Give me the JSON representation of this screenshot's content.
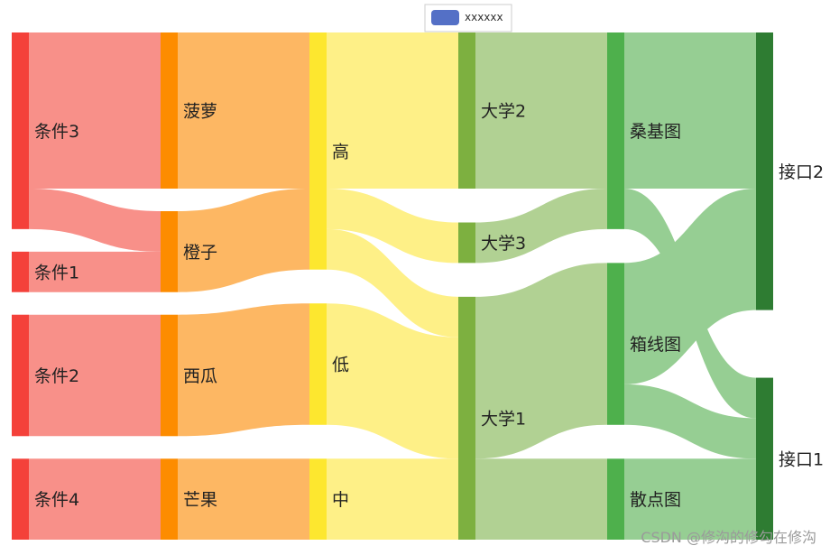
{
  "chart_data": {
    "type": "sankey",
    "legend": {
      "items": [
        "xxxxxx"
      ],
      "color": "#5470c6",
      "placement": "top-center"
    },
    "columns": [
      {
        "color": "#f4413a",
        "nodes": [
          "条件3",
          "条件1",
          "条件2",
          "条件4"
        ]
      },
      {
        "color": "#fd8c00",
        "nodes": [
          "菠萝",
          "橙子",
          "西瓜",
          "芒果"
        ]
      },
      {
        "color": "#fde72f",
        "nodes": [
          "高",
          "低",
          "中"
        ]
      },
      {
        "color": "#7db040",
        "nodes": [
          "大学2",
          "大学3",
          "大学1"
        ]
      },
      {
        "color": "#4eb04c",
        "nodes": [
          "桑基图",
          "箱线图",
          "散点图"
        ]
      },
      {
        "color": "#2e7c32",
        "nodes": [
          "接口2",
          "接口1"
        ]
      }
    ],
    "links": [
      {
        "source": "条件3",
        "target": "菠萝",
        "value": 13.5
      },
      {
        "source": "条件3",
        "target": "橙子",
        "value": 3.5
      },
      {
        "source": "条件1",
        "target": "橙子",
        "value": 3.5
      },
      {
        "source": "条件2",
        "target": "西瓜",
        "value": 10.5
      },
      {
        "source": "条件4",
        "target": "芒果",
        "value": 7
      },
      {
        "source": "菠萝",
        "target": "高",
        "value": 13.5
      },
      {
        "source": "橙子",
        "target": "高",
        "value": 7
      },
      {
        "source": "西瓜",
        "target": "低",
        "value": 10.5
      },
      {
        "source": "芒果",
        "target": "中",
        "value": 7
      },
      {
        "source": "高",
        "target": "大学2",
        "value": 13.5
      },
      {
        "source": "高",
        "target": "大学3",
        "value": 3.5
      },
      {
        "source": "高",
        "target": "大学1",
        "value": 3.5
      },
      {
        "source": "低",
        "target": "大学1",
        "value": 10.5
      },
      {
        "source": "中",
        "target": "大学1",
        "value": 7
      },
      {
        "source": "大学2",
        "target": "桑基图",
        "value": 13.5
      },
      {
        "source": "大学3",
        "target": "桑基图",
        "value": 3.5
      },
      {
        "source": "大学1",
        "target": "箱线图",
        "value": 14
      },
      {
        "source": "大学1",
        "target": "散点图",
        "value": 7
      },
      {
        "source": "桑基图",
        "target": "接口2",
        "value": 13.5
      },
      {
        "source": "桑基图",
        "target": "接口1",
        "value": 3.5
      },
      {
        "source": "箱线图",
        "target": "接口2",
        "value": 10.5
      },
      {
        "source": "箱线图",
        "target": "接口1",
        "value": 3.5
      },
      {
        "source": "散点图",
        "target": "接口1",
        "value": 7
      }
    ]
  },
  "watermark": "CSDN @修沟的修勾在修沟"
}
